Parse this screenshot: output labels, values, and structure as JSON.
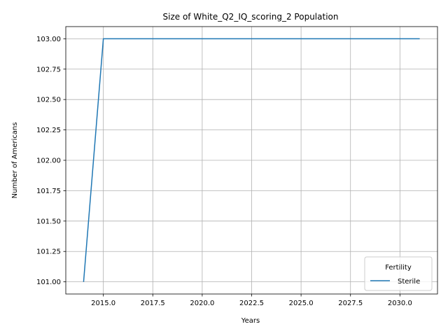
{
  "chart_data": {
    "type": "line",
    "title": "Size of White_Q2_IQ_scoring_2 Population",
    "xlabel": "Years",
    "ylabel": "Number of Americans",
    "xlim": [
      2013.1,
      2031.9
    ],
    "ylim": [
      100.9,
      103.1
    ],
    "xticks": [
      2015.0,
      2017.5,
      2020.0,
      2022.5,
      2025.0,
      2027.5,
      2030.0
    ],
    "xtick_labels": [
      "2015.0",
      "2017.5",
      "2020.0",
      "2022.5",
      "2025.0",
      "2027.5",
      "2030.0"
    ],
    "yticks": [
      101.0,
      101.25,
      101.5,
      101.75,
      102.0,
      102.25,
      102.5,
      102.75,
      103.0
    ],
    "ytick_labels": [
      "101.00",
      "101.25",
      "101.50",
      "101.75",
      "102.00",
      "102.25",
      "102.50",
      "102.75",
      "103.00"
    ],
    "grid": true,
    "legend": {
      "title": "Fertility",
      "placement": "lower-right"
    },
    "series": [
      {
        "name": "Sterile",
        "color": "#1f77b4",
        "x": [
          2014,
          2015,
          2016,
          2017,
          2018,
          2019,
          2020,
          2021,
          2022,
          2023,
          2024,
          2025,
          2026,
          2027,
          2028,
          2029,
          2030,
          2031
        ],
        "y": [
          101,
          103,
          103,
          103,
          103,
          103,
          103,
          103,
          103,
          103,
          103,
          103,
          103,
          103,
          103,
          103,
          103,
          103
        ]
      }
    ]
  }
}
